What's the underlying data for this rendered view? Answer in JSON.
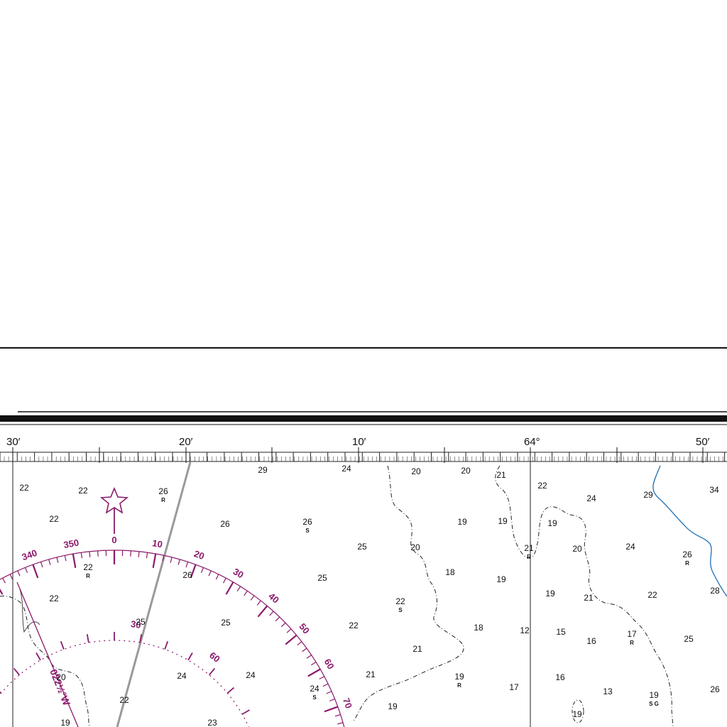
{
  "longitude_labels": [
    "30′",
    "20′",
    "10′",
    "64°",
    "50′"
  ],
  "compass_rose": {
    "true_labels": [
      "340",
      "350",
      "0",
      "10",
      "20",
      "30",
      "40",
      "50",
      "60",
      "70"
    ],
    "magnetic_labels": [
      "30",
      "60"
    ],
    "variation_note": "022½°W"
  },
  "soundings": [
    {
      "depth": "29"
    },
    {
      "depth": "24"
    },
    {
      "depth": "20"
    },
    {
      "depth": "20"
    },
    {
      "depth": "21"
    },
    {
      "depth": "22"
    },
    {
      "depth": "22"
    },
    {
      "depth": "26",
      "bottom": "R"
    },
    {
      "depth": "22"
    },
    {
      "depth": "24"
    },
    {
      "depth": "29"
    },
    {
      "depth": "34"
    },
    {
      "depth": "22"
    },
    {
      "depth": "26"
    },
    {
      "depth": "26",
      "bottom": "S"
    },
    {
      "depth": "19"
    },
    {
      "depth": "19"
    },
    {
      "depth": "19"
    },
    {
      "depth": "25"
    },
    {
      "depth": "20"
    },
    {
      "depth": "21",
      "bottom": "R"
    },
    {
      "depth": "20"
    },
    {
      "depth": "24"
    },
    {
      "depth": "26",
      "bottom": "R"
    },
    {
      "depth": "22",
      "bottom": "R"
    },
    {
      "depth": "26"
    },
    {
      "depth": "25"
    },
    {
      "depth": "18"
    },
    {
      "depth": "19"
    },
    {
      "depth": "28"
    },
    {
      "depth": "22"
    },
    {
      "depth": "22",
      "bottom": "S"
    },
    {
      "depth": "19"
    },
    {
      "depth": "21"
    },
    {
      "depth": "22"
    },
    {
      "depth": "25"
    },
    {
      "depth": "25"
    },
    {
      "depth": "22"
    },
    {
      "depth": "18"
    },
    {
      "depth": "12"
    },
    {
      "depth": "15"
    },
    {
      "depth": "16"
    },
    {
      "depth": "17",
      "bottom": "R"
    },
    {
      "depth": "25"
    },
    {
      "depth": "21"
    },
    {
      "depth": "24"
    },
    {
      "depth": "24"
    },
    {
      "depth": "21"
    },
    {
      "depth": "19",
      "bottom": "R"
    },
    {
      "depth": "17"
    },
    {
      "depth": "16"
    },
    {
      "depth": "13"
    },
    {
      "depth": "19",
      "bottom": "S G"
    },
    {
      "depth": "26"
    },
    {
      "depth": "20"
    },
    {
      "depth": "22"
    },
    {
      "depth": "24",
      "bottom": "S"
    },
    {
      "depth": "19"
    },
    {
      "depth": "19"
    },
    {
      "depth": "23"
    },
    {
      "depth": "19"
    }
  ]
}
